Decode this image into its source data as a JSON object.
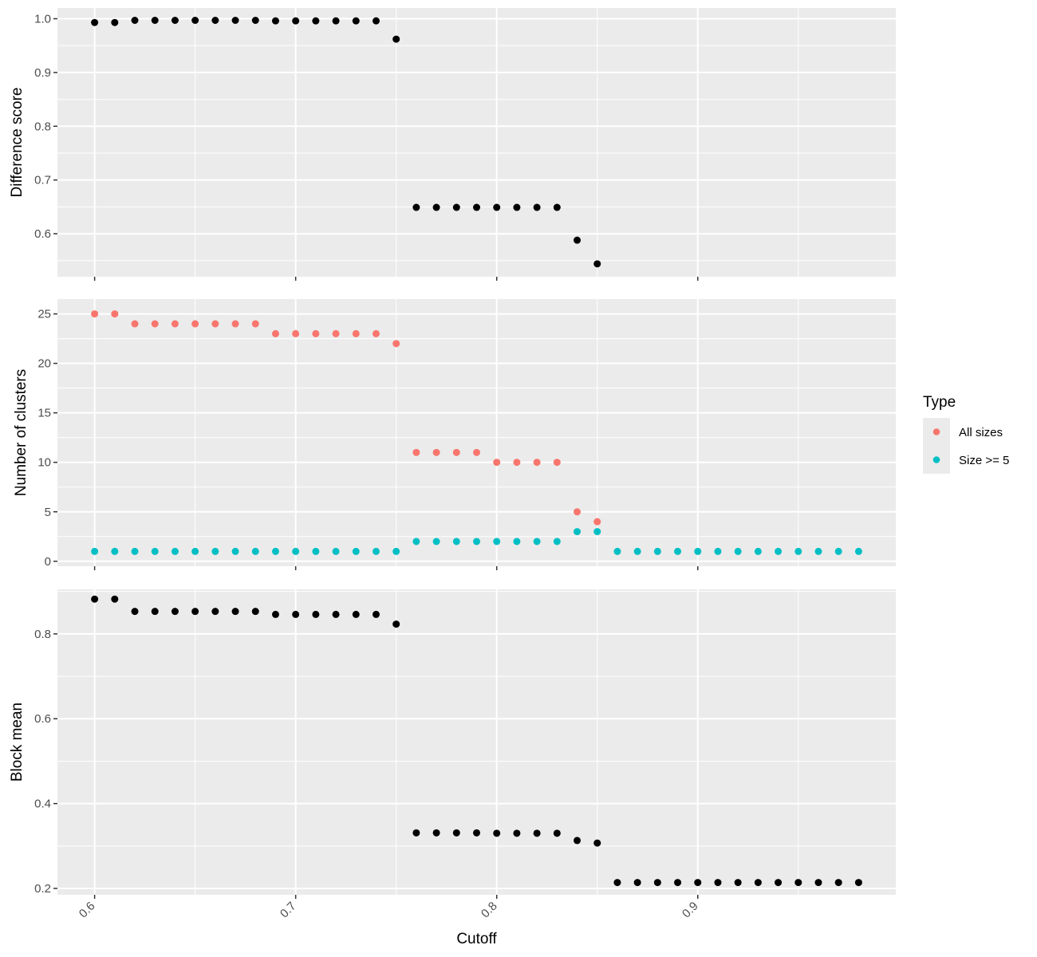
{
  "chart_data": [
    {
      "type": "scatter",
      "ylabel": "Difference score",
      "ylim": [
        0.52,
        1.02
      ],
      "yticks": [
        0.6,
        0.7,
        0.8,
        0.9,
        1.0
      ],
      "ytick_labels": [
        "0.6",
        "0.7",
        "0.8",
        "0.9",
        "1.0"
      ],
      "series": [
        {
          "color": "#000000",
          "x": [
            0.6,
            0.61,
            0.62,
            0.63,
            0.64,
            0.65,
            0.66,
            0.67,
            0.68,
            0.69,
            0.7,
            0.71,
            0.72,
            0.73,
            0.74,
            0.75,
            0.76,
            0.77,
            0.78,
            0.79,
            0.8,
            0.81,
            0.82,
            0.83,
            0.84,
            0.85
          ],
          "y": [
            0.993,
            0.993,
            0.997,
            0.997,
            0.997,
            0.997,
            0.997,
            0.997,
            0.997,
            0.996,
            0.996,
            0.996,
            0.996,
            0.996,
            0.996,
            0.962,
            0.649,
            0.649,
            0.649,
            0.649,
            0.649,
            0.649,
            0.649,
            0.649,
            0.588,
            0.544
          ]
        }
      ]
    },
    {
      "type": "scatter",
      "ylabel": "Number of clusters",
      "ylim": [
        -0.5,
        26.5
      ],
      "yticks": [
        0,
        5,
        10,
        15,
        20,
        25
      ],
      "ytick_labels": [
        "0",
        "5",
        "10",
        "15",
        "20",
        "25"
      ],
      "series": [
        {
          "name": "All sizes",
          "color": "#f8766d",
          "x": [
            0.6,
            0.61,
            0.62,
            0.63,
            0.64,
            0.65,
            0.66,
            0.67,
            0.68,
            0.69,
            0.7,
            0.71,
            0.72,
            0.73,
            0.74,
            0.75,
            0.76,
            0.77,
            0.78,
            0.79,
            0.8,
            0.81,
            0.82,
            0.83,
            0.84,
            0.85
          ],
          "y": [
            25,
            25,
            24,
            24,
            24,
            24,
            24,
            24,
            24,
            23,
            23,
            23,
            23,
            23,
            23,
            22,
            11,
            11,
            11,
            11,
            10,
            10,
            10,
            10,
            5,
            4
          ]
        },
        {
          "name": "Size >= 5",
          "color": "#00bfc4",
          "x": [
            0.6,
            0.61,
            0.62,
            0.63,
            0.64,
            0.65,
            0.66,
            0.67,
            0.68,
            0.69,
            0.7,
            0.71,
            0.72,
            0.73,
            0.74,
            0.75,
            0.76,
            0.77,
            0.78,
            0.79,
            0.8,
            0.81,
            0.82,
            0.83,
            0.84,
            0.85,
            0.86,
            0.87,
            0.88,
            0.89,
            0.9,
            0.91,
            0.92,
            0.93,
            0.94,
            0.95,
            0.96,
            0.97,
            0.98
          ],
          "y": [
            1,
            1,
            1,
            1,
            1,
            1,
            1,
            1,
            1,
            1,
            1,
            1,
            1,
            1,
            1,
            1,
            2,
            2,
            2,
            2,
            2,
            2,
            2,
            2,
            3,
            3,
            1,
            1,
            1,
            1,
            1,
            1,
            1,
            1,
            1,
            1,
            1,
            1,
            1
          ]
        }
      ]
    },
    {
      "type": "scatter",
      "ylabel": "Block mean",
      "xlabel": "Cutoff",
      "ylim": [
        0.185,
        0.905
      ],
      "yticks": [
        0.2,
        0.4,
        0.6,
        0.8
      ],
      "ytick_labels": [
        "0.2",
        "0.4",
        "0.6",
        "0.8"
      ],
      "series": [
        {
          "color": "#000000",
          "x": [
            0.6,
            0.61,
            0.62,
            0.63,
            0.64,
            0.65,
            0.66,
            0.67,
            0.68,
            0.69,
            0.7,
            0.71,
            0.72,
            0.73,
            0.74,
            0.75,
            0.76,
            0.77,
            0.78,
            0.79,
            0.8,
            0.81,
            0.82,
            0.83,
            0.84,
            0.85,
            0.86,
            0.87,
            0.88,
            0.89,
            0.9,
            0.91,
            0.92,
            0.93,
            0.94,
            0.95,
            0.96,
            0.97,
            0.98
          ],
          "y": [
            0.882,
            0.882,
            0.853,
            0.853,
            0.853,
            0.853,
            0.853,
            0.853,
            0.853,
            0.846,
            0.846,
            0.846,
            0.846,
            0.846,
            0.846,
            0.823,
            0.331,
            0.331,
            0.331,
            0.331,
            0.33,
            0.33,
            0.33,
            0.33,
            0.313,
            0.307,
            0.214,
            0.214,
            0.214,
            0.214,
            0.214,
            0.214,
            0.214,
            0.214,
            0.214,
            0.214,
            0.214,
            0.214,
            0.214
          ]
        }
      ]
    }
  ],
  "x_axis": {
    "xlim": [
      0.5815,
      0.9985
    ],
    "xticks": [
      0.6,
      0.7,
      0.8,
      0.9
    ],
    "xtick_labels": [
      "0.6",
      "0.7",
      "0.8",
      "0.9"
    ],
    "grid": true
  },
  "legend": {
    "title": "Type",
    "position": "right",
    "entries": [
      {
        "label": "All sizes",
        "color": "#f8766d"
      },
      {
        "label": "Size >= 5",
        "color": "#00bfc4"
      }
    ]
  }
}
